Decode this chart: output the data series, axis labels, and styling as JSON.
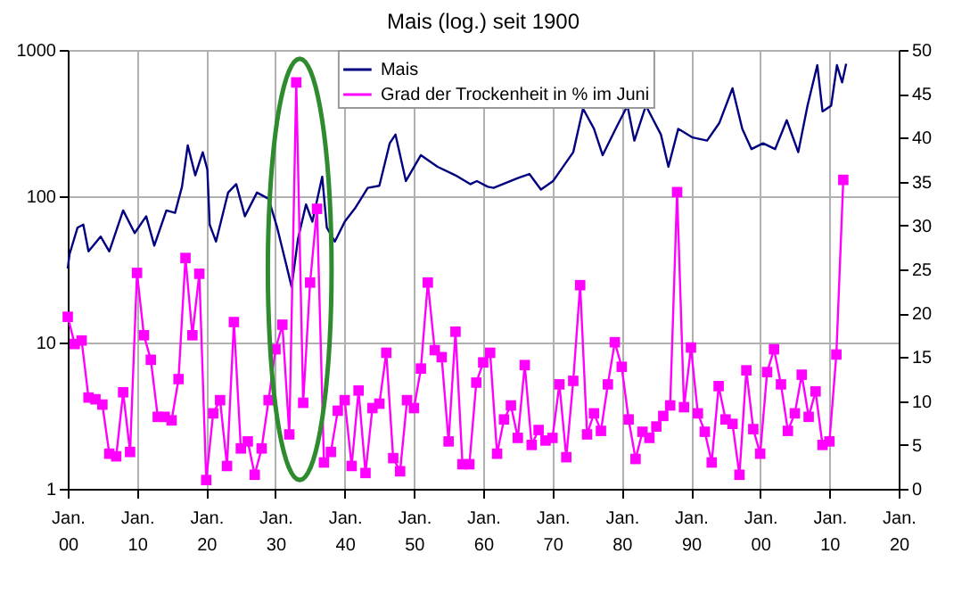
{
  "chart_data": {
    "type": "line",
    "title": "Mais (log.) seit 1900",
    "xlim": [
      "1900",
      "2020"
    ],
    "xticks": [
      {
        "value": "1900",
        "label": "Jan. 00"
      },
      {
        "value": "1910",
        "label": "Jan. 10"
      },
      {
        "value": "1920",
        "label": "Jan. 20"
      },
      {
        "value": "1930",
        "label": "Jan. 30"
      },
      {
        "value": "1940",
        "label": "Jan. 40"
      },
      {
        "value": "1950",
        "label": "Jan. 50"
      },
      {
        "value": "1960",
        "label": "Jan. 60"
      },
      {
        "value": "1970",
        "label": "Jan. 70"
      },
      {
        "value": "1980",
        "label": "Jan. 80"
      },
      {
        "value": "1990",
        "label": "Jan. 90"
      },
      {
        "value": "2000",
        "label": "Jan. 00"
      },
      {
        "value": "2010",
        "label": "Jan. 10"
      },
      {
        "value": "2020",
        "label": "Jan. 20"
      }
    ],
    "ylim": [
      1,
      1000
    ],
    "yticks": [
      1,
      10,
      100,
      1000
    ],
    "log": "y",
    "y2lim": [
      0,
      50
    ],
    "y2ticks": [
      0,
      5,
      10,
      15,
      20,
      25,
      30,
      35,
      40,
      45,
      50
    ],
    "grid": true,
    "legend": "top",
    "series": [
      {
        "name": "Mais",
        "color": "#000080",
        "marker": "none",
        "x": [
          "1900-01",
          "1900-04",
          "1901-06",
          "1902-04",
          "1903-01",
          "1904-10",
          "1906-01",
          "1908-01",
          "1909-09",
          "1911-05",
          "1912-07",
          "1914-04",
          "1915-07",
          "1916-07",
          "1917-05",
          "1918-06",
          "1919-07",
          "1920-03",
          "1920-07",
          "1921-06",
          "1923-03",
          "1924-05",
          "1925-08",
          "1927-05",
          "1929-01",
          "1930-04",
          "1931-07",
          "1932-05",
          "1933-04",
          "1934-06",
          "1935-05",
          "1936-10",
          "1937-06",
          "1938-08",
          "1940-01",
          "1941-08",
          "1943-05",
          "1945-01",
          "1946-07",
          "1947-05",
          "1948-11",
          "1951-01",
          "1953-06",
          "1956-01",
          "1958-03",
          "1959-02",
          "1960-09",
          "1961-07",
          "1965-01",
          "1966-09",
          "1968-05",
          "1970-02",
          "1971-04",
          "1973-01",
          "1974-06",
          "1976-01",
          "1977-04",
          "1979-05",
          "1980-11",
          "1981-11",
          "1983-07",
          "1985-09",
          "1986-10",
          "1988-03",
          "1990-04",
          "1992-05",
          "1994-02",
          "1996-01",
          "1997-06",
          "1998-10",
          "2000-06",
          "2002-03",
          "2003-11",
          "2005-07",
          "2006-11",
          "2008-04",
          "2009-01",
          "2010-04",
          "2011-02",
          "2011-11",
          "2012-06"
        ],
        "values": [
          32,
          40,
          61,
          64,
          42,
          53,
          42,
          80,
          56,
          73,
          46,
          80,
          77,
          116,
          223,
          139,
          200,
          152,
          64,
          49,
          106,
          121,
          73,
          106,
          96,
          61,
          35,
          24,
          51,
          88,
          67,
          136,
          61,
          49,
          67,
          84,
          114,
          118,
          230,
          264,
          127,
          191,
          159,
          139,
          121,
          127,
          116,
          114,
          133,
          142,
          111,
          127,
          152,
          200,
          397,
          289,
          191,
          302,
          416,
          240,
          416,
          264,
          159,
          289,
          252,
          240,
          316,
          547,
          289,
          210,
          230,
          210,
          331,
          200,
          416,
          787,
          380,
          416,
          787,
          600,
          804
        ]
      },
      {
        "name": "Grad der Trockenheit in % im Juni",
        "color": "#ff00ff",
        "axis": "y2",
        "marker": "square",
        "x": [
          "1900",
          "1901",
          "1902",
          "1903",
          "1904",
          "1905",
          "1906",
          "1907",
          "1908",
          "1909",
          "1910",
          "1911",
          "1912",
          "1913",
          "1914",
          "1915",
          "1916",
          "1917",
          "1918",
          "1919",
          "1920",
          "1921",
          "1922",
          "1923",
          "1924",
          "1925",
          "1926",
          "1927",
          "1928",
          "1929",
          "1930",
          "1931",
          "1932",
          "1933",
          "1934",
          "1935",
          "1936",
          "1937",
          "1938",
          "1939",
          "1940",
          "1941",
          "1942",
          "1943",
          "1944",
          "1945",
          "1946",
          "1947",
          "1948",
          "1949",
          "1950",
          "1951",
          "1952",
          "1953",
          "1954",
          "1955",
          "1956",
          "1957",
          "1958",
          "1959",
          "1960",
          "1961",
          "1962",
          "1963",
          "1964",
          "1965",
          "1966",
          "1967",
          "1968",
          "1969",
          "1970",
          "1971",
          "1972",
          "1973",
          "1974",
          "1975",
          "1976",
          "1977",
          "1978",
          "1979",
          "1980",
          "1981",
          "1982",
          "1983",
          "1984",
          "1985",
          "1986",
          "1987",
          "1988",
          "1989",
          "1990",
          "1991",
          "1992",
          "1993",
          "1994",
          "1995",
          "1996",
          "1997",
          "1998",
          "1999",
          "2000",
          "2001",
          "2002",
          "2003",
          "2004",
          "2005",
          "2006",
          "2007",
          "2008",
          "2009",
          "2010",
          "2011",
          "2012"
        ],
        "values": [
          19.6,
          16.5,
          16.9,
          10.4,
          10.2,
          9.6,
          4.0,
          3.7,
          11.0,
          4.2,
          24.6,
          17.5,
          14.7,
          8.2,
          8.2,
          7.8,
          12.5,
          26.3,
          17.5,
          24.5,
          1.0,
          8.6,
          10.1,
          2.6,
          19.0,
          4.6,
          5.4,
          1.6,
          4.6,
          10.1,
          15.9,
          18.7,
          6.2,
          46.3,
          9.8,
          23.5,
          31.9,
          3.0,
          4.2,
          8.9,
          10.1,
          2.6,
          11.2,
          1.8,
          9.2,
          9.7,
          15.5,
          3.5,
          2.0,
          10.1,
          9.2,
          13.7,
          23.5,
          15.8,
          15.0,
          5.4,
          17.9,
          2.8,
          2.8,
          12.1,
          14.4,
          15.5,
          4.0,
          7.9,
          9.5,
          5.8,
          14.1,
          5.0,
          6.7,
          5.5,
          5.8,
          11.9,
          3.6,
          12.3,
          23.2,
          6.2,
          8.6,
          6.6,
          11.9,
          16.7,
          13.9,
          7.9,
          3.4,
          6.5,
          5.8,
          7.1,
          8.3,
          9.5,
          33.8,
          9.3,
          16.1,
          8.6,
          6.5,
          3.0,
          11.7,
          7.9,
          7.4,
          1.6,
          13.5,
          6.8,
          4.0,
          13.3,
          15.9,
          11.9,
          6.6,
          8.6,
          13.0,
          8.2,
          11.1,
          5.0,
          5.4,
          15.3,
          35.2
        ]
      }
    ]
  }
}
